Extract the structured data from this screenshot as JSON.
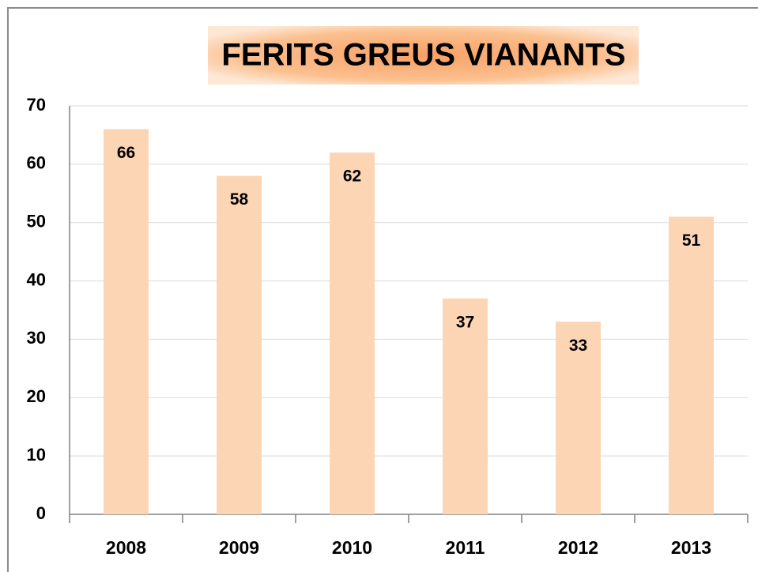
{
  "chart_data": {
    "type": "bar",
    "title": "FERITS GREUS VIANANTS",
    "categories": [
      "2008",
      "2009",
      "2010",
      "2011",
      "2012",
      "2013"
    ],
    "values": [
      66,
      58,
      62,
      37,
      33,
      51
    ],
    "color": "#fcd5b4",
    "ylim": [
      0,
      70
    ],
    "yticks": [
      0,
      10,
      20,
      30,
      40,
      50,
      60,
      70
    ],
    "grid": true
  }
}
